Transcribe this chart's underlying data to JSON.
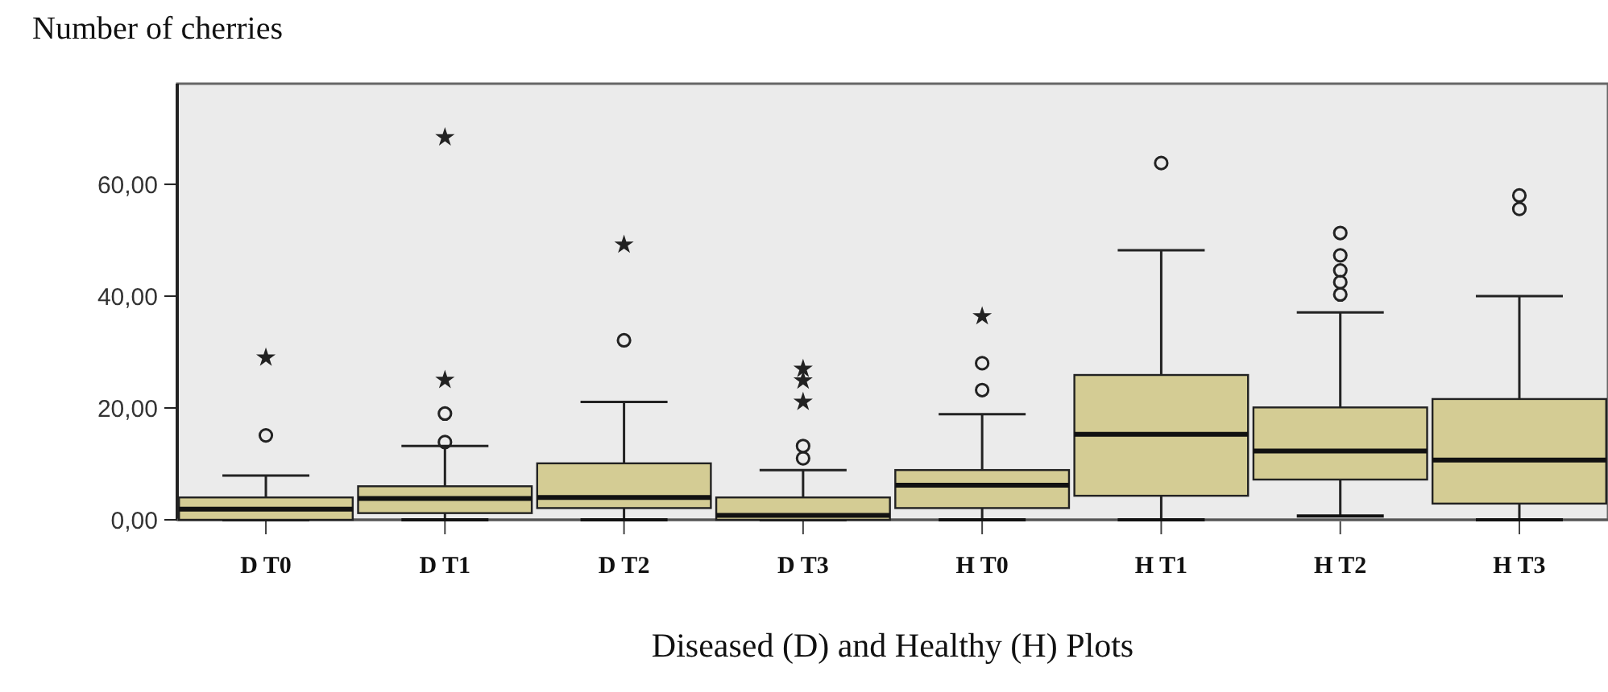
{
  "chart_data": {
    "type": "box",
    "ylabel": "Number of cherries",
    "xlabel": "Diseased (D) and Healthy (H) Plots",
    "categories": [
      "D T0",
      "D T1",
      "D T2",
      "D T3",
      "H T0",
      "H T1",
      "H T2",
      "H T3"
    ],
    "ylim": [
      0,
      78
    ],
    "yticks": [
      {
        "value": 0,
        "label": "0,00"
      },
      {
        "value": 20,
        "label": "20,00"
      },
      {
        "value": 40,
        "label": "40,00"
      },
      {
        "value": 60,
        "label": "60,00"
      }
    ],
    "grid": false,
    "series": [
      {
        "type": "box",
        "color": "#d4cc94",
        "boxes": [
          {
            "low": 0,
            "q1": 0,
            "median": 1.9,
            "q3": 4,
            "high": 7.9,
            "outliers": [
              15.1
            ]
          },
          {
            "low": 0,
            "q1": 1.2,
            "median": 3.8,
            "q3": 6,
            "high": 13.2,
            "outliers": [
              13.9,
              19
            ]
          },
          {
            "low": 0,
            "q1": 2.1,
            "median": 4,
            "q3": 10.1,
            "high": 21.1,
            "outliers": [
              32.1
            ]
          },
          {
            "low": 0,
            "q1": 0,
            "median": 0.8,
            "q3": 4,
            "high": 8.9,
            "outliers": [
              11,
              13.2
            ]
          },
          {
            "low": 0,
            "q1": 2.1,
            "median": 6.2,
            "q3": 8.9,
            "high": 18.9,
            "outliers": [
              23.2,
              28
            ]
          },
          {
            "low": 0,
            "q1": 4.3,
            "median": 15.3,
            "q3": 25.9,
            "high": 48.2,
            "outliers": [
              63.8
            ]
          },
          {
            "low": 0.7,
            "q1": 7.2,
            "median": 12.3,
            "q3": 20.1,
            "high": 37.1,
            "outliers": [
              40.3,
              42.5,
              44.6,
              47.3,
              51.3
            ]
          },
          {
            "low": 0,
            "q1": 2.9,
            "median": 10.7,
            "q3": 21.6,
            "high": 40,
            "outliers": [
              55.6,
              58
            ]
          }
        ]
      },
      {
        "type": "scatter",
        "marker": "star",
        "color": "#222222",
        "x": [
          "D T0",
          "D T1",
          "D T1",
          "D T2",
          "D T3",
          "D T3",
          "D T3",
          "H T0"
        ],
        "values": [
          29,
          25,
          68.4,
          49.2,
          21.1,
          24.9,
          27,
          36.4
        ]
      }
    ]
  }
}
